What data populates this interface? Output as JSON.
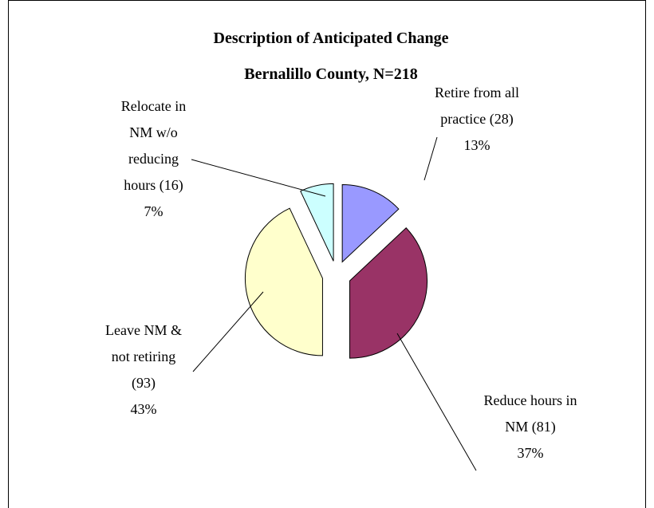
{
  "chart_data": {
    "type": "pie",
    "title": "Description of Anticipated Change",
    "subtitle": "Bernalillo County, N=218",
    "categories": [
      "Retire from all practice",
      "Reduce hours in NM",
      "Leave NM & not retiring",
      "Relocate in NM w/o reducing hours"
    ],
    "values": [
      13,
      37,
      43,
      7
    ],
    "value_labels": [
      "13%",
      "37%",
      "43%",
      "7%"
    ],
    "counts": [
      28,
      81,
      93,
      16
    ],
    "count_labels": [
      "(28)",
      "(81)",
      "(93)",
      "(16)"
    ],
    "colors": [
      "#9999ff",
      "#993366",
      "#ffffcc",
      "#ccffff"
    ],
    "exploded": true
  }
}
